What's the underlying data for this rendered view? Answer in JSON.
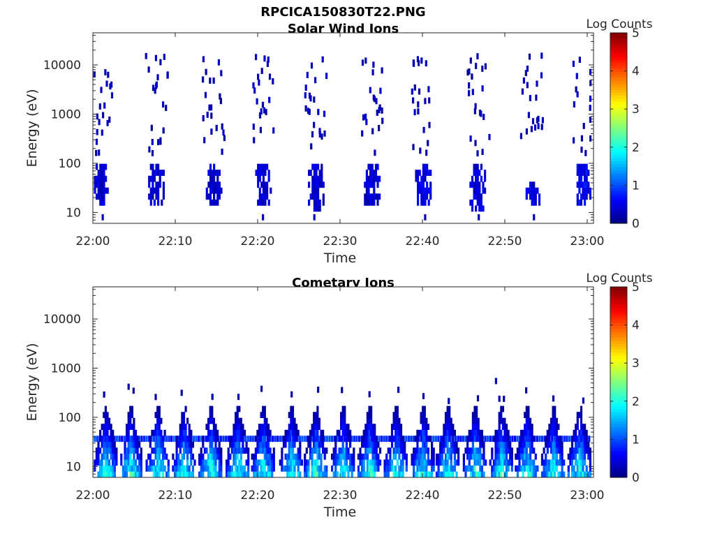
{
  "figure": {
    "title": "RPCICA150830T22.PNG"
  },
  "chart_data": [
    {
      "type": "heatmap",
      "title": "Solar Wind Ions",
      "xlabel": "Time",
      "ylabel": "Energy (eV)",
      "x_ticks": [
        "22:00",
        "22:10",
        "22:20",
        "22:30",
        "22:40",
        "22:50",
        "23:00"
      ],
      "x_range": [
        "22:00",
        "23:00"
      ],
      "y_scale": "log",
      "y_ticks": [
        "10",
        "100",
        "1000",
        "10000"
      ],
      "y_range_ev": [
        6,
        45000
      ],
      "colorbar": {
        "label": "Log Counts",
        "ticks": [
          "0",
          "1",
          "2",
          "3",
          "4",
          "5"
        ],
        "range": [
          0,
          5
        ],
        "colormap": "jet"
      },
      "sweep_period_min": 6.6,
      "bursts": [
        {
          "t_min": 0.8,
          "e_lo_ev": 15,
          "e_hi_ev": 90,
          "log_counts_peak": 0.6
        },
        {
          "t_min": 7.6,
          "e_lo_ev": 15,
          "e_hi_ev": 90,
          "log_counts_peak": 0.6
        },
        {
          "t_min": 14.6,
          "e_lo_ev": 15,
          "e_hi_ev": 90,
          "log_counts_peak": 0.6
        },
        {
          "t_min": 20.6,
          "e_lo_ev": 15,
          "e_hi_ev": 90,
          "log_counts_peak": 0.6
        },
        {
          "t_min": 27.0,
          "e_lo_ev": 12,
          "e_hi_ev": 90,
          "log_counts_peak": 0.6
        },
        {
          "t_min": 33.8,
          "e_lo_ev": 15,
          "e_hi_ev": 90,
          "log_counts_peak": 0.6
        },
        {
          "t_min": 40.0,
          "e_lo_ev": 15,
          "e_hi_ev": 90,
          "log_counts_peak": 0.7
        },
        {
          "t_min": 46.6,
          "e_lo_ev": 10,
          "e_hi_ev": 90,
          "log_counts_peak": 0.7
        },
        {
          "t_min": 53.2,
          "e_lo_ev": 15,
          "e_hi_ev": 45,
          "log_counts_peak": 0.7
        },
        {
          "t_min": 59.6,
          "e_lo_ev": 15,
          "e_hi_ev": 90,
          "log_counts_peak": 0.8
        }
      ]
    },
    {
      "type": "heatmap",
      "title": "Cometary Ions",
      "xlabel": "Time",
      "ylabel": "Energy (eV)",
      "x_ticks": [
        "22:00",
        "22:10",
        "22:20",
        "22:30",
        "22:40",
        "22:50",
        "23:00"
      ],
      "x_range": [
        "22:00",
        "23:00"
      ],
      "y_scale": "log",
      "y_ticks": [
        "10",
        "100",
        "1000",
        "10000"
      ],
      "y_range_ev": [
        6,
        45000
      ],
      "colorbar": {
        "label": "Log Counts",
        "ticks": [
          "0",
          "1",
          "2",
          "3",
          "4",
          "5"
        ],
        "range": [
          0,
          5
        ],
        "colormap": "jet"
      },
      "band_ev": [
        6,
        200
      ],
      "peak_log_counts": 2.2,
      "burst_times_min": [
        1.5,
        4.5,
        7.8,
        11.0,
        14.2,
        17.5,
        20.6,
        24.0,
        27.0,
        30.3,
        33.5,
        36.7,
        40.0,
        43.0,
        46.3,
        49.5,
        52.6,
        55.8,
        59.0
      ]
    }
  ]
}
